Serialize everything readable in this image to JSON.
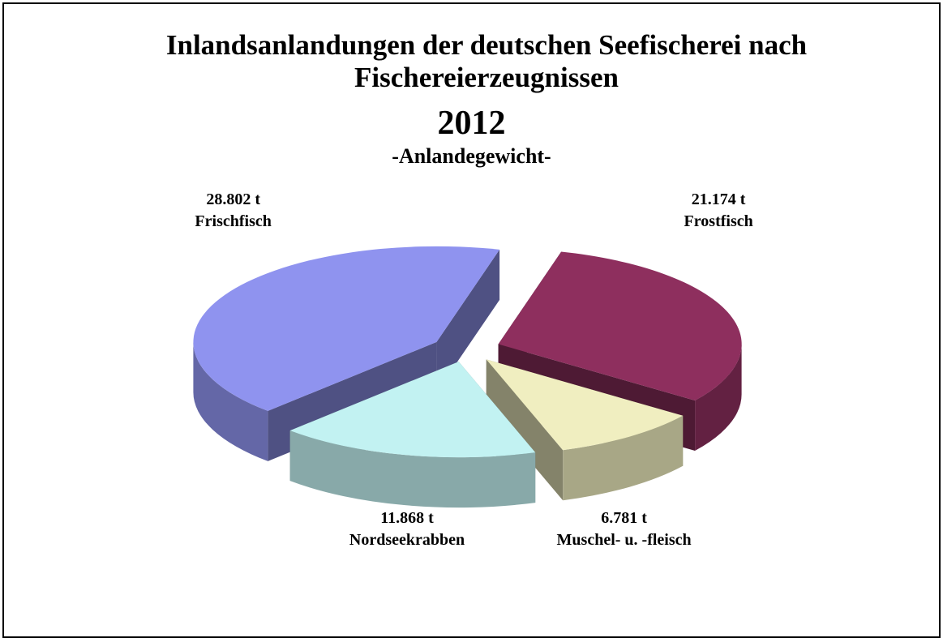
{
  "chart_data": {
    "type": "pie3d",
    "title": "Inlandsanlandungen der deutschen Seefischerei nach Fischereierzeugnissen",
    "subtitle": "2012",
    "subtitle2": "-Anlandegewicht-",
    "categories": [
      "Frostfisch",
      "Muschel- u. -fleisch",
      "Nordseekrabben",
      "Frischfisch"
    ],
    "values": [
      21174,
      6781,
      11868,
      28802
    ],
    "value_labels": [
      "21.174 t",
      "6.781 t",
      "11.868 t",
      "28.802 t"
    ],
    "colors": [
      "#8e2f5e",
      "#f0eec0",
      "#c2f2f2",
      "#8f93ef"
    ]
  }
}
